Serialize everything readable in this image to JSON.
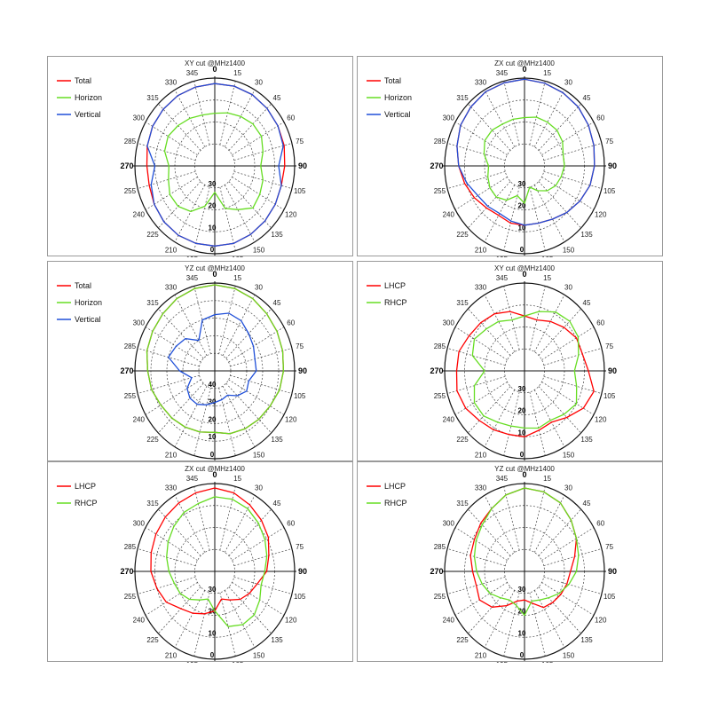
{
  "chart_data": [
    {
      "type": "polar-line",
      "title": "XY cut @MHz1400",
      "angle_labels": [
        "0",
        "15",
        "30",
        "45",
        "60",
        "75",
        "90",
        "105",
        "120",
        "135",
        "150",
        "165",
        "180",
        "195",
        "210",
        "225",
        "240",
        "255",
        "270",
        "285",
        "300",
        "315",
        "330",
        "345"
      ],
      "radial_labels": [
        "30",
        "20",
        "10",
        "0"
      ],
      "r_range": [
        -40,
        0
      ],
      "grid": true,
      "legend_position": "top-left",
      "series": [
        {
          "name": "Total",
          "color": "#ff0000",
          "values": [
            -2.5,
            -2.4,
            -2.5,
            -3,
            -3.5,
            -4,
            -5,
            -5.5,
            -5,
            -4.5,
            -4,
            -3.5,
            -3.5,
            -3.5,
            -3.5,
            -4,
            -5,
            -6,
            -6,
            -5,
            -4,
            -3.5,
            -3,
            -2.8
          ]
        },
        {
          "name": "Horizon",
          "color": "#66dd22",
          "values": [
            -16,
            -15,
            -14,
            -13,
            -13,
            -15,
            -17,
            -15,
            -14,
            -13,
            -17,
            -20,
            -28,
            -21,
            -16,
            -14,
            -14,
            -16,
            -17,
            -14,
            -13,
            -14,
            -15,
            -16
          ]
        },
        {
          "name": "Vertical",
          "color": "#1f4fd8",
          "values": [
            -2.5,
            -2.4,
            -2.5,
            -3,
            -3.5,
            -4.5,
            -8,
            -5.5,
            -5,
            -4.5,
            -4,
            -3.5,
            -3.5,
            -3.5,
            -3.5,
            -4,
            -5,
            -7,
            -10,
            -5,
            -4,
            -3.5,
            -3,
            -2.8
          ]
        }
      ]
    },
    {
      "type": "polar-line",
      "title": "ZX cut @MHz1400",
      "angle_labels": [
        "0",
        "15",
        "30",
        "45",
        "60",
        "75",
        "90",
        "105",
        "120",
        "135",
        "150",
        "165",
        "180",
        "195",
        "210",
        "225",
        "240",
        "255",
        "270",
        "285",
        "300",
        "315",
        "330",
        "345"
      ],
      "radial_labels": [
        "30",
        "20",
        "10",
        "0"
      ],
      "r_range": [
        -40,
        0
      ],
      "grid": true,
      "legend_position": "top-left",
      "series": [
        {
          "name": "Total",
          "color": "#ff0000",
          "values": [
            -0.5,
            -1,
            -1.5,
            -2,
            -3,
            -4,
            -5,
            -6,
            -8,
            -10,
            -12,
            -13,
            -13,
            -13,
            -14,
            -13,
            -11,
            -9,
            -7,
            -5,
            -3,
            -2,
            -1,
            -0.8
          ]
        },
        {
          "name": "Horizon",
          "color": "#66dd22",
          "values": [
            -18,
            -17,
            -17,
            -17,
            -18,
            -20,
            -20,
            -21,
            -22,
            -24,
            -27,
            -30,
            -23,
            -26,
            -22,
            -20,
            -20,
            -21,
            -22,
            -19,
            -17,
            -17,
            -18,
            -18
          ]
        },
        {
          "name": "Vertical",
          "color": "#1f4fd8",
          "values": [
            -0.5,
            -1,
            -1.5,
            -2,
            -3,
            -4,
            -5,
            -6,
            -8,
            -10,
            -12,
            -13,
            -13,
            -14,
            -15,
            -14,
            -13,
            -10,
            -7,
            -5,
            -3,
            -2,
            -1,
            -0.8
          ]
        }
      ]
    },
    {
      "type": "polar-line",
      "title": "YZ cut @MHz1400",
      "angle_labels": [
        "0",
        "15",
        "30",
        "45",
        "60",
        "75",
        "90",
        "105",
        "120",
        "135",
        "150",
        "165",
        "180",
        "195",
        "210",
        "225",
        "240",
        "255",
        "270",
        "285",
        "300",
        "315",
        "330",
        "345"
      ],
      "radial_labels": [
        "40",
        "30",
        "20",
        "10",
        "0"
      ],
      "r_range": [
        -50,
        0
      ],
      "grid": true,
      "legend_position": "top-left",
      "series": [
        {
          "name": "Total",
          "color": "#ff0000",
          "values": [
            -1,
            -1.5,
            -2.5,
            -4,
            -5,
            -6,
            -7,
            -8,
            -10,
            -11,
            -12,
            -13,
            -15,
            -14,
            -13,
            -12,
            -11,
            -9,
            -8,
            -6,
            -5,
            -4,
            -2.5,
            -1.5
          ]
        },
        {
          "name": "Horizon",
          "color": "#66dd22",
          "values": [
            -1,
            -1.5,
            -2.5,
            -4,
            -5,
            -6,
            -7,
            -8,
            -10,
            -11,
            -12,
            -13,
            -15,
            -14,
            -13,
            -12,
            -11,
            -9,
            -8,
            -6,
            -5,
            -4,
            -2.5,
            -1.5
          ]
        },
        {
          "name": "Vertical",
          "color": "#1f4fd8",
          "values": [
            -18,
            -16,
            -17,
            -20,
            -22,
            -24,
            -24,
            -28,
            -27,
            -30,
            -34,
            -33,
            -32,
            -30,
            -28,
            -28,
            -30,
            -35,
            -28,
            -20,
            -22,
            -24,
            -30,
            -20
          ]
        }
      ]
    },
    {
      "type": "polar-line",
      "title": "XY cut @MHz1400",
      "angle_labels": [
        "0",
        "15",
        "30",
        "45",
        "60",
        "75",
        "90",
        "105",
        "120",
        "135",
        "150",
        "165",
        "180",
        "195",
        "210",
        "225",
        "240",
        "255",
        "270",
        "285",
        "300",
        "315",
        "330",
        "345"
      ],
      "radial_labels": [
        "30",
        "20",
        "10",
        "0"
      ],
      "r_range": [
        -40,
        0
      ],
      "grid": true,
      "legend_position": "top-left",
      "series": [
        {
          "name": "LHCP",
          "color": "#ff0000",
          "values": [
            -15,
            -16,
            -14,
            -12,
            -10,
            -10,
            -8,
            -4,
            -6,
            -10,
            -13,
            -12,
            -10,
            -10,
            -9,
            -8,
            -6,
            -5,
            -6,
            -6,
            -8,
            -9,
            -10,
            -12
          ]
        },
        {
          "name": "RHCP",
          "color": "#66dd22",
          "values": [
            -15,
            -12,
            -9,
            -8,
            -9,
            -12,
            -15,
            -13,
            -10,
            -12,
            -14,
            -13,
            -14,
            -14,
            -13,
            -11,
            -11,
            -14,
            -20,
            -13,
            -11,
            -13,
            -14,
            -16
          ]
        }
      ]
    },
    {
      "type": "polar-line",
      "title": "ZX cut @MHz1400",
      "angle_labels": [
        "0",
        "15",
        "30",
        "45",
        "60",
        "75",
        "90",
        "105",
        "120",
        "135",
        "150",
        "165",
        "180",
        "195",
        "210",
        "225",
        "240",
        "255",
        "270",
        "285",
        "300",
        "315",
        "330",
        "345"
      ],
      "radial_labels": [
        "30",
        "20",
        "10",
        "0"
      ],
      "r_range": [
        -40,
        0
      ],
      "grid": true,
      "legend_position": "top-left",
      "series": [
        {
          "name": "LHCP",
          "color": "#ff0000",
          "values": [
            -2,
            -3,
            -5,
            -7,
            -9,
            -12,
            -14,
            -18,
            -20,
            -22,
            -25,
            -27,
            -22,
            -20,
            -18,
            -16,
            -12,
            -10,
            -8,
            -7,
            -6,
            -5,
            -4,
            -3
          ]
        },
        {
          "name": "RHCP",
          "color": "#66dd22",
          "values": [
            -6,
            -6,
            -7,
            -9,
            -11,
            -13,
            -15,
            -16,
            -14,
            -12,
            -12,
            -14,
            -22,
            -27,
            -25,
            -22,
            -20,
            -19,
            -17,
            -15,
            -13,
            -11,
            -9,
            -8
          ]
        }
      ]
    },
    {
      "type": "polar-line",
      "title": "YZ cut @MHz1400",
      "angle_labels": [
        "0",
        "15",
        "30",
        "45",
        "60",
        "75",
        "90",
        "105",
        "120",
        "135",
        "150",
        "165",
        "180",
        "195",
        "210",
        "225",
        "240",
        "255",
        "270",
        "285",
        "300",
        "315",
        "330",
        "345"
      ],
      "radial_labels": [
        "30",
        "20",
        "10",
        "0"
      ],
      "r_range": [
        -40,
        0
      ],
      "grid": true,
      "legend_position": "top-left",
      "series": [
        {
          "name": "LHCP",
          "color": "#ff0000",
          "values": [
            -2,
            -2.5,
            -4,
            -7,
            -10,
            -14,
            -17,
            -18,
            -19,
            -20,
            -21,
            -25,
            -27,
            -26,
            -22,
            -17,
            -14,
            -15,
            -14,
            -12,
            -11,
            -9,
            -7,
            -4
          ]
        },
        {
          "name": "RHCP",
          "color": "#66dd22",
          "values": [
            -2,
            -2.5,
            -4,
            -7,
            -10,
            -12,
            -14,
            -17,
            -20,
            -23,
            -25,
            -26,
            -20,
            -24,
            -25,
            -23,
            -20,
            -18,
            -16,
            -14,
            -12,
            -10,
            -7,
            -4
          ]
        }
      ]
    }
  ]
}
